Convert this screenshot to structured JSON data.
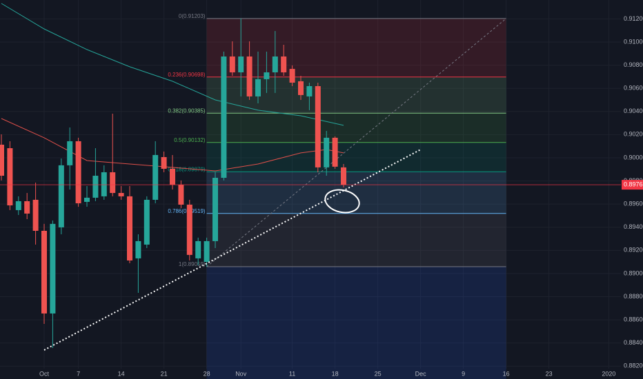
{
  "chart_data": {
    "type": "candlestick",
    "categories": [
      null,
      null,
      null,
      null,
      null,
      "Oct",
      null,
      null,
      null,
      "7",
      null,
      null,
      null,
      null,
      "14",
      null,
      null,
      null,
      null,
      "21",
      null,
      null,
      null,
      null,
      "28",
      null,
      null,
      null,
      "Nov",
      null,
      null,
      null,
      null,
      null,
      "11",
      null,
      null,
      null,
      null,
      "18",
      null,
      null,
      null,
      null,
      "25",
      null,
      null,
      null,
      null,
      "Dec",
      null,
      null,
      null,
      null,
      "9",
      null,
      null,
      null,
      null,
      "16",
      null,
      null,
      null,
      null,
      "23",
      null,
      null,
      null,
      null,
      null,
      null,
      "2020"
    ],
    "open": [
      0.90113,
      0.90083,
      0.89548,
      0.89625,
      0.89637,
      0.89369,
      0.88655,
      0.89399,
      0.89935,
      0.90143,
      0.89619,
      0.89655,
      0.89667,
      0.89875,
      0.89696,
      0.89667,
      0.89131,
      0.8925,
      0.89637,
      0.90006,
      0.89905,
      0.89768,
      0.89595,
      0.89131,
      0.89101,
      0.8928,
      0.89827,
      0.90875,
      0.90738,
      0.90875,
      0.9053,
      0.90679,
      0.90738,
      0.90875,
      0.90768,
      0.90661,
      0.9053,
      0.90619,
      0.89917,
      0.90173,
      0.89917,
      null,
      null,
      null,
      null,
      null,
      null,
      null,
      null,
      null,
      null,
      null,
      null,
      null,
      null,
      null,
      null,
      null,
      null,
      null,
      null,
      null,
      null,
      null,
      null,
      null,
      null,
      null,
      null,
      null,
      null,
      null
    ],
    "high": [
      0.90202,
      0.90143,
      0.89667,
      0.89696,
      0.89786,
      0.89429,
      0.89458,
      0.89994,
      0.90262,
      0.90173,
      0.89756,
      0.90083,
      0.89935,
      0.90381,
      0.89756,
      0.89756,
      0.89339,
      0.89667,
      0.90143,
      0.90054,
      0.90024,
      0.89804,
      0.89637,
      0.8931,
      0.8931,
      0.89875,
      0.90917,
      0.91006,
      0.91203,
      0.91006,
      0.90917,
      0.90917,
      0.91095,
      0.90976,
      0.90798,
      0.90708,
      0.90649,
      0.90649,
      0.90232,
      0.90185,
      0.89946,
      null,
      null,
      null,
      null,
      null,
      null,
      null,
      null,
      null,
      null,
      null,
      null,
      null,
      null,
      null,
      null,
      null,
      null,
      null,
      null,
      null,
      null,
      null,
      null,
      null,
      null,
      null,
      null,
      null,
      null,
      null
    ],
    "low": [
      0.89804,
      0.89548,
      0.89506,
      0.8947,
      0.8925,
      0.88565,
      0.88357,
      0.89339,
      0.89726,
      0.89577,
      0.89577,
      0.89625,
      0.89637,
      0.89667,
      0.89637,
      0.89089,
      0.88833,
      0.8922,
      0.89607,
      0.89875,
      0.89726,
      0.89565,
      0.89113,
      0.89071,
      0.89059,
      0.8922,
      0.89804,
      0.90708,
      0.9053,
      0.905,
      0.9047,
      0.9056,
      0.9056,
      0.90708,
      0.90619,
      0.905,
      0.90411,
      0.89875,
      0.89845,
      0.89905,
      0.89744,
      null,
      null,
      null,
      null,
      null,
      null,
      null,
      null,
      null,
      null,
      null,
      null,
      null,
      null,
      null,
      null,
      null,
      null,
      null,
      null,
      null,
      null,
      null,
      null,
      null,
      null,
      null,
      null,
      null,
      null,
      null
    ],
    "close": [
      0.89845,
      0.89589,
      0.89625,
      0.89518,
      0.89369,
      0.88655,
      0.89429,
      0.89935,
      0.90143,
      0.89607,
      0.89655,
      0.89845,
      0.89875,
      0.89696,
      0.89667,
      0.89113,
      0.8928,
      0.89637,
      0.90024,
      0.89905,
      0.89768,
      0.89595,
      0.89161,
      0.8928,
      0.8928,
      0.89827,
      0.90875,
      0.90738,
      0.90875,
      0.9053,
      0.90679,
      0.90738,
      0.90875,
      0.90738,
      0.90649,
      0.90542,
      0.90619,
      0.89917,
      0.90173,
      0.89923,
      0.89767,
      null,
      null,
      null,
      null,
      null,
      null,
      null,
      null,
      null,
      null,
      null,
      null,
      null,
      null,
      null,
      null,
      null,
      null,
      null,
      null,
      null,
      null,
      null,
      null,
      null,
      null,
      null,
      null,
      null,
      null,
      null
    ],
    "up_color": "#26a69a",
    "down_color": "#ef5350",
    "ylim": [
      0.88089,
      0.91363
    ],
    "yticks": [
      {
        "value": 0.882,
        "label": "0.88200"
      },
      {
        "value": 0.884,
        "label": "0.88400"
      },
      {
        "value": 0.886,
        "label": "0.88600"
      },
      {
        "value": 0.888,
        "label": "0.88800"
      },
      {
        "value": 0.89,
        "label": "0.89000"
      },
      {
        "value": 0.892,
        "label": "0.89200"
      },
      {
        "value": 0.894,
        "label": "0.89400"
      },
      {
        "value": 0.896,
        "label": "0.89600"
      },
      {
        "value": 0.898,
        "label": "0.89800"
      },
      {
        "value": 0.9,
        "label": "0.90000"
      },
      {
        "value": 0.902,
        "label": "0.90200"
      },
      {
        "value": 0.904,
        "label": "0.90400"
      },
      {
        "value": 0.906,
        "label": "0.90600"
      },
      {
        "value": 0.908,
        "label": "0.90800"
      },
      {
        "value": 0.91,
        "label": "0.91000"
      },
      {
        "value": 0.912,
        "label": "0.91200"
      }
    ],
    "grid": true,
    "last_price_color": "#f23645",
    "moving_averages": [
      {
        "color": "#26a69a",
        "x": [
          0,
          5,
          10,
          15,
          20,
          25,
          30,
          35,
          40
        ],
        "values": [
          0.91333,
          0.91113,
          0.90935,
          0.90786,
          0.90661,
          0.905,
          0.90411,
          0.90363,
          0.9028
        ]
      },
      {
        "color": "#e0504a",
        "x": [
          0,
          5,
          10,
          15,
          20,
          25,
          30,
          35,
          38,
          40
        ],
        "values": [
          0.90339,
          0.90173,
          0.89976,
          0.89946,
          0.89917,
          0.89887,
          0.89946,
          0.90042,
          0.90071,
          0.90042
        ]
      }
    ],
    "trendline": {
      "color": "#ffffff",
      "x": [
        5,
        49
      ],
      "values": [
        0.88339,
        0.90071
      ]
    },
    "fib": {
      "x": [
        24,
        59
      ],
      "levels": [
        {
          "label": "0(0.91203)",
          "value": 0.91203,
          "color": "#787b86"
        },
        {
          "label": "0.236(0.90698)",
          "value": 0.90698,
          "color": "#f23645"
        },
        {
          "label": "0.382(0.90385)",
          "value": 0.90385,
          "color": "#81c784"
        },
        {
          "label": "0.5(0.90132)",
          "value": 0.90132,
          "color": "#4caf50"
        },
        {
          "label": "0.618(0.89879)",
          "value": 0.89879,
          "color": "#089981"
        },
        {
          "label": "0.786(0.89519)",
          "value": 0.89519,
          "color": "#64b5f6"
        },
        {
          "label": "1(0.89059)",
          "value": 0.89059,
          "color": "#787b86"
        }
      ],
      "extension_color": "#2962ff"
    }
  }
}
